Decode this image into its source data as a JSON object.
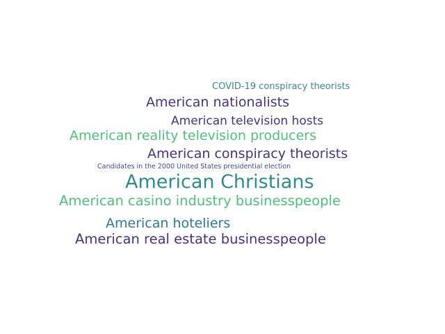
{
  "words": [
    {
      "text": "COVID-19 conspiracy theorists",
      "color": "#3b8a8c"
    },
    {
      "text": "American nationalists",
      "color": "#46337e"
    },
    {
      "text": "American television hosts",
      "color": "#46337e"
    },
    {
      "text": "American reality television producers",
      "color": "#4ec07c"
    },
    {
      "text": "American conspiracy theorists",
      "color": "#46337e"
    },
    {
      "text": "Candidates in the 2000 United States presidential election",
      "color": "#3f4c8a"
    },
    {
      "text": "American Christians",
      "color": "#2e8c8c"
    },
    {
      "text": "American casino industry businesspeople",
      "color": "#4ec07c"
    },
    {
      "text": "American hoteliers",
      "color": "#2e7a8e"
    },
    {
      "text": "American real estate businesspeople",
      "color": "#46337e"
    }
  ]
}
